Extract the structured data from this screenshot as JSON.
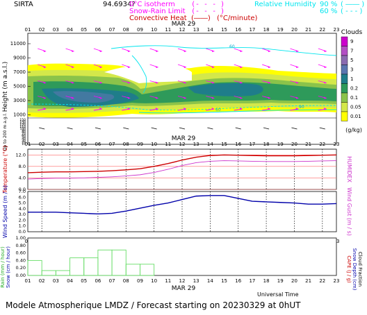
{
  "header": {
    "station": "SIRTA",
    "coords": "94.6934?",
    "legend_left": [
      {
        "label": "0°C isotherm",
        "sample": "(- - - )",
        "color": "#ff00ff"
      },
      {
        "label": "Snow-Rain Limit",
        "sample": "(- - - )",
        "color": "#ff00ff"
      },
      {
        "label": "Convective Heat",
        "sample": "(――)",
        "unit": "(°C/minute)",
        "color": "#cc0000"
      }
    ],
    "legend_right": {
      "label": "Relative Humidity",
      "rows": [
        {
          "value": "90 %",
          "sample": "( ―― )"
        },
        {
          "value": "60 %",
          "sample": "( - - - )"
        }
      ],
      "color": "#00e5ee"
    }
  },
  "hours": [
    "01",
    "02",
    "03",
    "04",
    "05",
    "06",
    "07",
    "08",
    "09",
    "10",
    "11",
    "12",
    "13",
    "14",
    "15",
    "16",
    "17",
    "18",
    "19",
    "20",
    "21",
    "22",
    "23"
  ],
  "date_label": "MAR 29",
  "panels": {
    "clouds": {
      "ylabel": "Height (m a.s.l.)",
      "ylabel_low": "Up to 200 m a.g.l.",
      "y_ticks_upper": [
        "11000",
        "9000",
        "7000",
        "5000",
        "3000",
        "1000"
      ],
      "y_ticks_lower": [
        "150",
        "140",
        "130",
        "120",
        "110",
        "100",
        "90",
        "80",
        "70",
        "60",
        "50",
        "40",
        "30",
        "20",
        "10"
      ],
      "colorbar_title": "Clouds",
      "colorbar_unit": "(g/kg)",
      "colorbar_levels": [
        "9",
        "7",
        "5",
        "3",
        "1",
        "0.2",
        "0.1",
        "0.05",
        "0.01"
      ],
      "colorbar_colors": [
        "#cc00cc",
        "#b34fc4",
        "#8b6bb0",
        "#5b76b0",
        "#1f7d8a",
        "#2e9a5a",
        "#8bc34a",
        "#d4e84a",
        "#ffff00"
      ],
      "rh_labels": [
        "60",
        "60",
        "90"
      ]
    },
    "temperature": {
      "ylabel": "Temperature (°C)",
      "right_label": "HUMIDEX",
      "y_ticks": [
        "12.0",
        "8.0",
        "4.0",
        "0.0"
      ],
      "ylim": [
        0,
        14
      ],
      "temp_color": "#cc0000",
      "humidex_color": "#cc33cc"
    },
    "wind": {
      "ylabel": "Wind Speed (m / s)",
      "right_label": "Wind Gust (m / s)",
      "y_ticks": [
        "7.0",
        "6.0",
        "5.0",
        "4.0",
        "3.0",
        "2.0",
        "1.0",
        "0.0"
      ],
      "ylim": [
        0,
        7
      ],
      "color": "#0000aa"
    },
    "rain": {
      "ylabel": "Rain (mm / hour)",
      "ylabel2": "Snow (cm / hour)",
      "right_labels": [
        "CAPE (J / g)",
        "Snow Depth (cm)",
        "Cloud Fraction"
      ],
      "y_ticks": [
        "1.00",
        "0.80",
        "0.60",
        "0.40",
        "0.20",
        "0.00"
      ],
      "ylim": [
        0,
        1
      ],
      "color": "#66dd66",
      "xlabel": "Universal Time"
    }
  },
  "chart_data": [
    {
      "type": "line",
      "panel": "temperature",
      "x": [
        "01",
        "02",
        "03",
        "04",
        "05",
        "06",
        "07",
        "08",
        "09",
        "10",
        "11",
        "12",
        "13",
        "14",
        "15",
        "16",
        "17",
        "18",
        "19",
        "20",
        "21",
        "22",
        "23"
      ],
      "series": [
        {
          "name": "Temperature",
          "values": [
            5.8,
            6.0,
            6.1,
            6.1,
            6.2,
            6.3,
            6.5,
            6.8,
            7.2,
            8.0,
            9.0,
            10.2,
            11.2,
            11.8,
            12.0,
            11.9,
            11.8,
            11.7,
            11.7,
            11.7,
            11.8,
            11.9,
            12.0
          ]
        },
        {
          "name": "HUMIDEX",
          "values": [
            3.6,
            3.8,
            3.9,
            3.9,
            4.0,
            4.2,
            4.4,
            4.7,
            5.1,
            5.9,
            7.0,
            8.3,
            9.3,
            9.8,
            10.0,
            9.9,
            9.8,
            9.7,
            9.7,
            9.7,
            9.8,
            9.9,
            10.0
          ]
        }
      ],
      "ylim": [
        0,
        14
      ]
    },
    {
      "type": "line",
      "panel": "wind",
      "x": [
        "01",
        "02",
        "03",
        "04",
        "05",
        "06",
        "07",
        "08",
        "09",
        "10",
        "11",
        "12",
        "13",
        "14",
        "15",
        "16",
        "17",
        "18",
        "19",
        "20",
        "21",
        "22",
        "23"
      ],
      "series": [
        {
          "name": "Wind Speed",
          "values": [
            3.4,
            3.4,
            3.4,
            3.3,
            3.2,
            3.1,
            3.2,
            3.6,
            4.1,
            4.6,
            5.0,
            5.6,
            6.2,
            6.3,
            6.3,
            5.8,
            5.3,
            5.2,
            5.1,
            5.0,
            4.8,
            4.8,
            4.9
          ]
        }
      ],
      "ylim": [
        0,
        7
      ]
    },
    {
      "type": "bar",
      "panel": "rain",
      "x": [
        "01",
        "02",
        "03",
        "04",
        "05",
        "06",
        "07",
        "08",
        "09",
        "10",
        "11",
        "12",
        "13",
        "14",
        "15",
        "16",
        "17",
        "18",
        "19",
        "20",
        "21",
        "22",
        "23"
      ],
      "series": [
        {
          "name": "Rain",
          "values": [
            0.4,
            0.13,
            0.13,
            0.47,
            0.47,
            0.68,
            0.68,
            0.3,
            0.3,
            0,
            0,
            0,
            0,
            0,
            0,
            0,
            0,
            0,
            0,
            0,
            0,
            0,
            0
          ]
        }
      ],
      "ylim": [
        0,
        1
      ]
    }
  ],
  "footer": {
    "title": "Modele Atmospherique LMDZ / Forecast starting on 20230329 at 0hUT"
  }
}
